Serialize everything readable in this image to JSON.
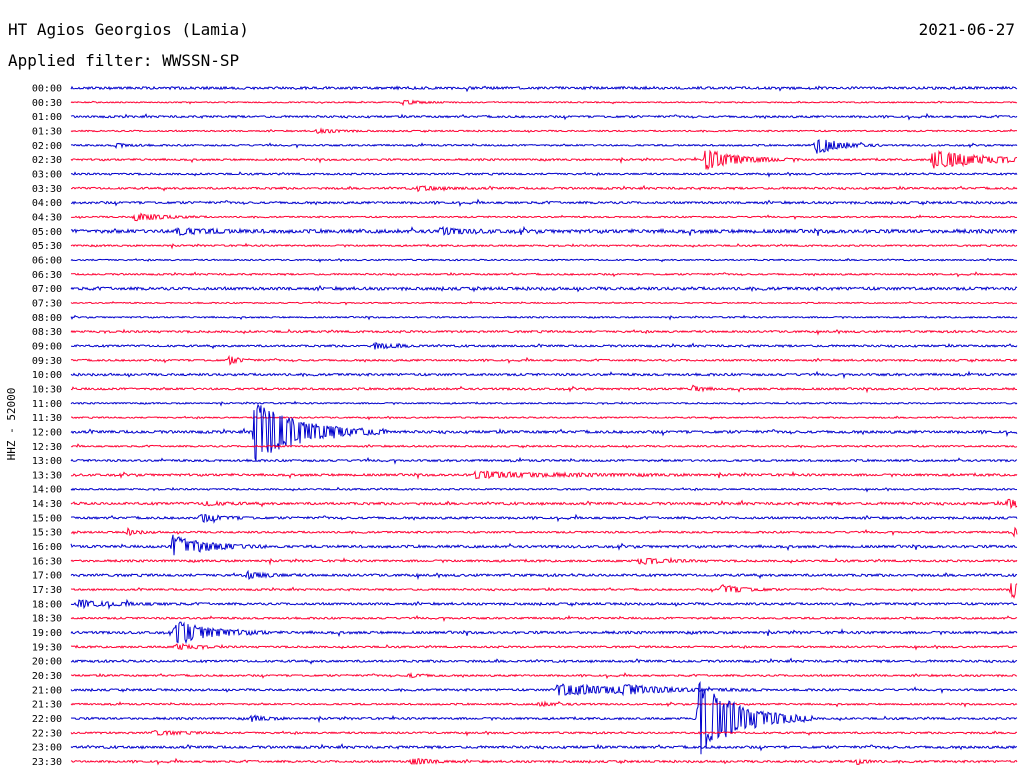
{
  "header": {
    "station": "HT Agios Georgios (Lamia)",
    "date": "2021-06-27",
    "filter_label": "Applied filter: WWSSN-SP"
  },
  "chart_data": {
    "type": "helicorder",
    "channel_label": "HHZ - 52000",
    "colors": [
      "#0000cc",
      "#ff0033"
    ],
    "row_times": [
      "00:00",
      "00:30",
      "01:00",
      "01:30",
      "02:00",
      "02:30",
      "03:00",
      "03:30",
      "04:00",
      "04:30",
      "05:00",
      "05:30",
      "06:00",
      "06:30",
      "07:00",
      "07:30",
      "08:00",
      "08:30",
      "09:00",
      "09:30",
      "10:00",
      "10:30",
      "11:00",
      "11:30",
      "12:00",
      "12:30",
      "13:00",
      "13:30",
      "14:00",
      "14:30",
      "15:00",
      "15:30",
      "16:00",
      "16:30",
      "17:00",
      "17:30",
      "18:00",
      "18:30",
      "19:00",
      "19:30",
      "20:00",
      "20:30",
      "21:00",
      "21:30",
      "22:00",
      "22:30",
      "23:00",
      "23:30"
    ],
    "row_minutes": 30,
    "noise": [
      1.2,
      0.6,
      1.0,
      0.7,
      0.8,
      0.9,
      0.9,
      1.0,
      1.1,
      0.7,
      1.7,
      0.8,
      0.7,
      0.8,
      1.4,
      0.6,
      0.7,
      1.0,
      1.0,
      0.9,
      1.1,
      1.0,
      0.7,
      0.7,
      1.3,
      0.8,
      1.0,
      1.1,
      0.8,
      1.2,
      1.1,
      0.9,
      1.2,
      1.0,
      1.2,
      0.9,
      1.1,
      0.9,
      1.2,
      0.9,
      1.1,
      0.9,
      1.0,
      0.8,
      1.0,
      0.9,
      1.2,
      1.0
    ],
    "events": [
      {
        "row": 1,
        "minute": 10.5,
        "amp": 2,
        "dur": 0.6
      },
      {
        "row": 3,
        "minute": 7.8,
        "amp": 2,
        "dur": 0.6
      },
      {
        "row": 4,
        "minute": 23.6,
        "amp": 9,
        "dur": 0.7
      },
      {
        "row": 4,
        "minute": 1.4,
        "amp": 2,
        "dur": 0.4
      },
      {
        "row": 5,
        "minute": 20.1,
        "amp": 10,
        "dur": 1.0
      },
      {
        "row": 5,
        "minute": 27.3,
        "amp": 9,
        "dur": 1.6
      },
      {
        "row": 7,
        "minute": 11.0,
        "amp": 2,
        "dur": 0.8
      },
      {
        "row": 9,
        "minute": 2.0,
        "amp": 4,
        "dur": 0.8
      },
      {
        "row": 10,
        "minute": 3.3,
        "amp": 3,
        "dur": 1.0
      },
      {
        "row": 10,
        "minute": 11.7,
        "amp": 3,
        "dur": 0.7
      },
      {
        "row": 18,
        "minute": 9.6,
        "amp": 3,
        "dur": 0.6
      },
      {
        "row": 19,
        "minute": 5.0,
        "amp": 4,
        "dur": 0.3
      },
      {
        "row": 21,
        "minute": 19.7,
        "amp": 3,
        "dur": 0.3
      },
      {
        "row": 24,
        "minute": 5.8,
        "amp": 30,
        "dur": 1.4
      },
      {
        "row": 27,
        "minute": 12.8,
        "amp": 3,
        "dur": 2.4
      },
      {
        "row": 29,
        "minute": 4.2,
        "amp": 2,
        "dur": 0.6
      },
      {
        "row": 29,
        "minute": 29.7,
        "amp": 4,
        "dur": 0.8
      },
      {
        "row": 30,
        "minute": 4.1,
        "amp": 4,
        "dur": 0.6
      },
      {
        "row": 31,
        "minute": 1.8,
        "amp": 3,
        "dur": 0.3
      },
      {
        "row": 31,
        "minute": 29.9,
        "amp": 4,
        "dur": 0.3
      },
      {
        "row": 32,
        "minute": 3.2,
        "amp": 11,
        "dur": 1.0
      },
      {
        "row": 33,
        "minute": 18.0,
        "amp": 3,
        "dur": 0.8
      },
      {
        "row": 34,
        "minute": 5.6,
        "amp": 3,
        "dur": 0.6
      },
      {
        "row": 35,
        "minute": 20.6,
        "amp": 5,
        "dur": 0.6
      },
      {
        "row": 35,
        "minute": 29.8,
        "amp": 9,
        "dur": 0.5
      },
      {
        "row": 36,
        "minute": 0.2,
        "amp": 3,
        "dur": 1.2
      },
      {
        "row": 38,
        "minute": 3.3,
        "amp": 12,
        "dur": 1.0
      },
      {
        "row": 39,
        "minute": 3.3,
        "amp": 3,
        "dur": 0.6
      },
      {
        "row": 41,
        "minute": 10.7,
        "amp": 2,
        "dur": 0.4
      },
      {
        "row": 42,
        "minute": 15.4,
        "amp": 6,
        "dur": 2.2
      },
      {
        "row": 42,
        "minute": 17.5,
        "amp": 3,
        "dur": 0.8
      },
      {
        "row": 43,
        "minute": 14.8,
        "amp": 2,
        "dur": 0.6
      },
      {
        "row": 44,
        "minute": 19.9,
        "amp": 38,
        "dur": 1.2
      },
      {
        "row": 44,
        "minute": 5.7,
        "amp": 3,
        "dur": 0.4
      },
      {
        "row": 45,
        "minute": 2.6,
        "amp": 2,
        "dur": 0.8
      },
      {
        "row": 47,
        "minute": 10.8,
        "amp": 4,
        "dur": 0.5
      },
      {
        "row": 47,
        "minute": 24.9,
        "amp": 3,
        "dur": 0.3
      }
    ]
  }
}
